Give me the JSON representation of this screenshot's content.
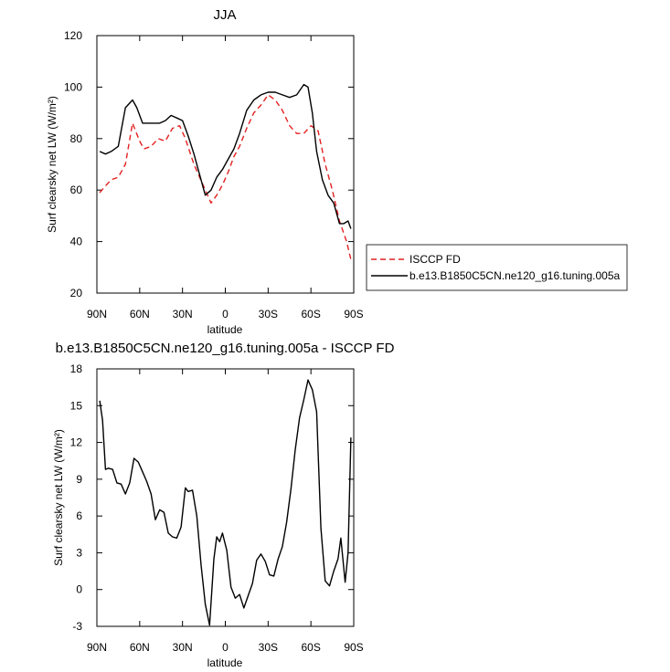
{
  "chart_data": [
    {
      "type": "line",
      "title": "JJA",
      "xlabel": "latitude",
      "ylabel": "Surf clearsky net LW (W/m²)",
      "ylim": [
        20,
        120
      ],
      "xlim": [
        -90,
        90
      ],
      "xticks": [
        -90,
        -60,
        -30,
        0,
        30,
        60,
        90
      ],
      "xtick_labels": [
        "90N",
        "60N",
        "30N",
        "0",
        "30S",
        "60S",
        "90S"
      ],
      "yticks": [
        20,
        40,
        60,
        80,
        100,
        120
      ],
      "ytick_labels": [
        "20",
        "40",
        "60",
        "80",
        "100",
        "120"
      ],
      "grid": false,
      "legend_position": "right",
      "series": [
        {
          "name": "ISCCP FD",
          "color": "#e32020",
          "dash": "dashed",
          "x": [
            -88,
            -85,
            -80,
            -75,
            -70,
            -65,
            -60,
            -57,
            -52,
            -47,
            -42,
            -37,
            -32,
            -28,
            -22,
            -18,
            -14,
            -10,
            -6,
            -2,
            2,
            6,
            10,
            15,
            20,
            25,
            30,
            35,
            40,
            45,
            50,
            55,
            60,
            65,
            70,
            75,
            80,
            85,
            88
          ],
          "y": [
            59,
            61,
            64,
            65,
            70,
            86,
            79,
            76,
            77,
            80,
            79,
            84,
            85,
            80,
            70,
            65,
            60,
            55,
            58,
            62,
            67,
            73,
            77,
            84,
            90,
            93,
            97,
            95,
            91,
            85,
            82,
            82,
            85,
            83,
            70,
            60,
            48,
            40,
            33
          ]
        },
        {
          "name": "b.e13.B1850C5CN.ne120_g16.tuning.005a",
          "color": "#000000",
          "dash": "solid",
          "x": [
            -88,
            -84,
            -80,
            -75,
            -70,
            -65,
            -62,
            -58,
            -54,
            -50,
            -46,
            -42,
            -38,
            -34,
            -30,
            -26,
            -22,
            -18,
            -14,
            -10,
            -6,
            -2,
            2,
            6,
            10,
            15,
            20,
            25,
            30,
            35,
            40,
            45,
            50,
            55,
            58,
            61,
            64,
            68,
            72,
            76,
            80,
            83,
            86,
            88
          ],
          "y": [
            75,
            74,
            75,
            77,
            92,
            95,
            92,
            86,
            86,
            86,
            86,
            87,
            89,
            88,
            87,
            81,
            74,
            66,
            58,
            60,
            65,
            68,
            72,
            76,
            82,
            91,
            95,
            97,
            98,
            98,
            97,
            96,
            97,
            101,
            100,
            90,
            75,
            64,
            58,
            55,
            47,
            47,
            48,
            45
          ]
        }
      ]
    },
    {
      "type": "line",
      "title": "b.e13.B1850C5CN.ne120_g16.tuning.005a - ISCCP FD",
      "xlabel": "latitude",
      "ylabel": "Surf clearsky net LW (W/m²)",
      "ylim": [
        -3,
        18
      ],
      "xlim": [
        -90,
        90
      ],
      "xticks": [
        -90,
        -60,
        -30,
        0,
        30,
        60,
        90
      ],
      "xtick_labels": [
        "90N",
        "60N",
        "30N",
        "0",
        "30S",
        "60S",
        "90S"
      ],
      "yticks": [
        -3,
        0,
        3,
        6,
        9,
        12,
        15,
        18
      ],
      "ytick_labels": [
        "-3",
        "0",
        "3",
        "6",
        "9",
        "12",
        "15",
        "18"
      ],
      "grid": false,
      "series": [
        {
          "color": "#000000",
          "dash": "solid",
          "x": [
            -88,
            -86,
            -84,
            -82,
            -79,
            -76,
            -73,
            -70,
            -67,
            -64,
            -61,
            -58,
            -55,
            -52,
            -49,
            -46,
            -43,
            -40,
            -37,
            -34,
            -31,
            -28,
            -26,
            -23,
            -20,
            -17,
            -14,
            -11,
            -8,
            -6,
            -4,
            -2,
            1,
            4,
            7,
            10,
            13,
            16,
            19,
            22,
            25,
            28,
            31,
            34,
            37,
            40,
            43,
            46,
            49,
            52,
            55,
            58,
            61,
            64,
            67,
            70,
            73,
            76,
            79,
            81,
            84,
            86,
            88
          ],
          "y": [
            15.4,
            13.8,
            9.8,
            9.9,
            9.8,
            8.7,
            8.6,
            7.8,
            8.7,
            10.7,
            10.4,
            9.6,
            8.8,
            7.8,
            5.7,
            6.5,
            6.3,
            4.6,
            4.3,
            4.2,
            5.1,
            8.3,
            8.0,
            8.1,
            6.0,
            2.0,
            -1.2,
            -2.9,
            2.5,
            4.3,
            3.9,
            4.6,
            3.2,
            0.2,
            -0.7,
            -0.4,
            -1.5,
            -0.5,
            0.5,
            2.4,
            2.9,
            2.3,
            1.2,
            1.1,
            2.5,
            3.5,
            5.5,
            8.2,
            11.4,
            14.0,
            15.5,
            17.1,
            16.3,
            14.5,
            5.0,
            0.7,
            0.3,
            1.5,
            2.5,
            4.2,
            0.6,
            3.0,
            12.4
          ]
        }
      ]
    }
  ]
}
